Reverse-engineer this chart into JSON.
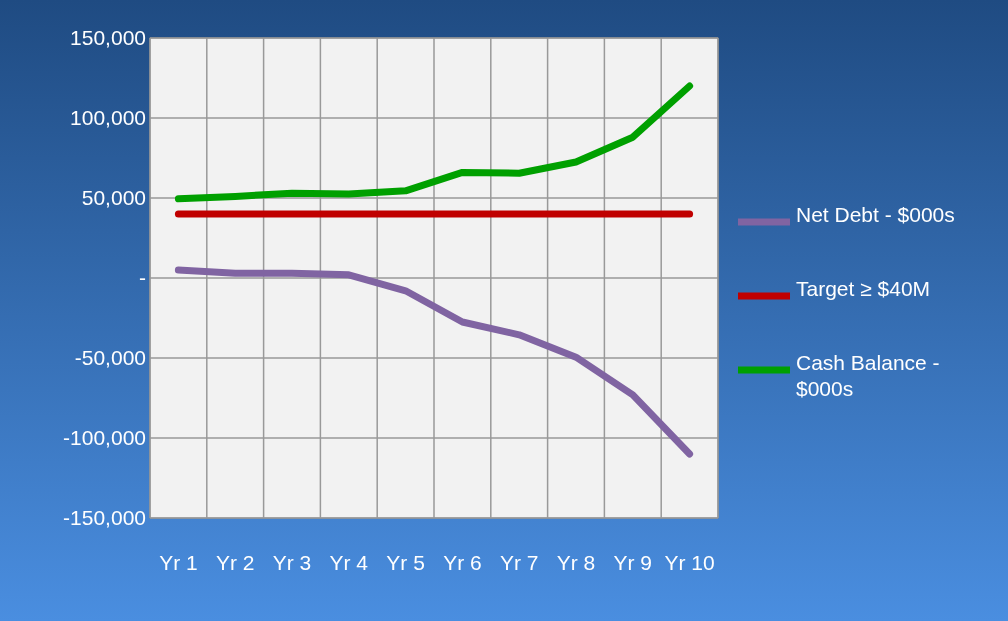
{
  "chart_data": {
    "type": "line",
    "categories": [
      "Yr 1",
      "Yr 2",
      "Yr 3",
      "Yr 4",
      "Yr 5",
      "Yr 6",
      "Yr 7",
      "Yr 8",
      "Yr 9",
      "Yr 10"
    ],
    "series": [
      {
        "name": "Net Debt - $000s",
        "color": "#8064a2",
        "values": [
          5000,
          3000,
          3000,
          2000,
          -8000,
          -27500,
          -35500,
          -49500,
          -73000,
          -110000
        ]
      },
      {
        "name": "Target ≥ $40M",
        "color": "#c00000",
        "values": [
          40000,
          40000,
          40000,
          40000,
          40000,
          40000,
          40000,
          40000,
          40000,
          40000
        ]
      },
      {
        "name": "Cash Balance - $000s",
        "color": "#00a000",
        "values": [
          49500,
          51000,
          53000,
          52500,
          54500,
          66000,
          65500,
          72500,
          88000,
          120000
        ]
      }
    ],
    "ylim": [
      -150000,
      150000
    ],
    "yticks": [
      {
        "value": -150000,
        "label": "-150,000"
      },
      {
        "value": -100000,
        "label": "-100,000"
      },
      {
        "value": -50000,
        "label": "-50,000"
      },
      {
        "value": 0,
        "label": "-"
      },
      {
        "value": 50000,
        "label": "50,000"
      },
      {
        "value": 100000,
        "label": "100,000"
      },
      {
        "value": 150000,
        "label": "150,000"
      }
    ],
    "grid": true,
    "legend": "right",
    "marker": "none",
    "line_style": "solid"
  }
}
